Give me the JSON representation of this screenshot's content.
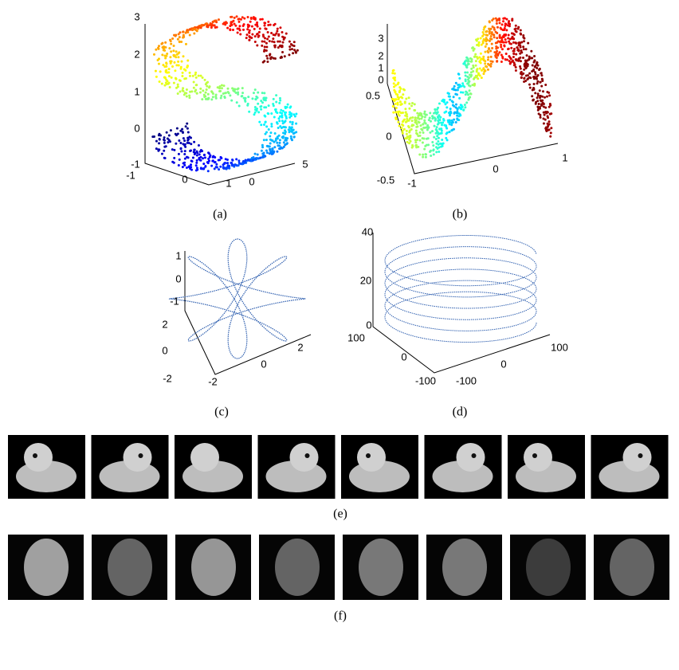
{
  "panels": [
    {
      "caption": "(a)",
      "ticks": [
        "3",
        "2",
        "1",
        "0",
        "-1",
        "-1",
        "0",
        "1",
        "0",
        "5"
      ]
    },
    {
      "caption": "(b)",
      "ticks": [
        "3",
        "2",
        "1",
        "0",
        "0.5",
        "0",
        "-0.5",
        "-1",
        "0",
        "1"
      ]
    },
    {
      "caption": "(c)",
      "ticks": [
        "1",
        "0",
        "-1",
        "2",
        "0",
        "-2",
        "-2",
        "0",
        "2"
      ]
    },
    {
      "caption": "(d)",
      "ticks": [
        "40",
        "20",
        "0",
        "100",
        "0",
        "-100",
        "-100",
        "0",
        "100"
      ]
    },
    {
      "caption": "(e)"
    },
    {
      "caption": "(f)"
    }
  ]
}
